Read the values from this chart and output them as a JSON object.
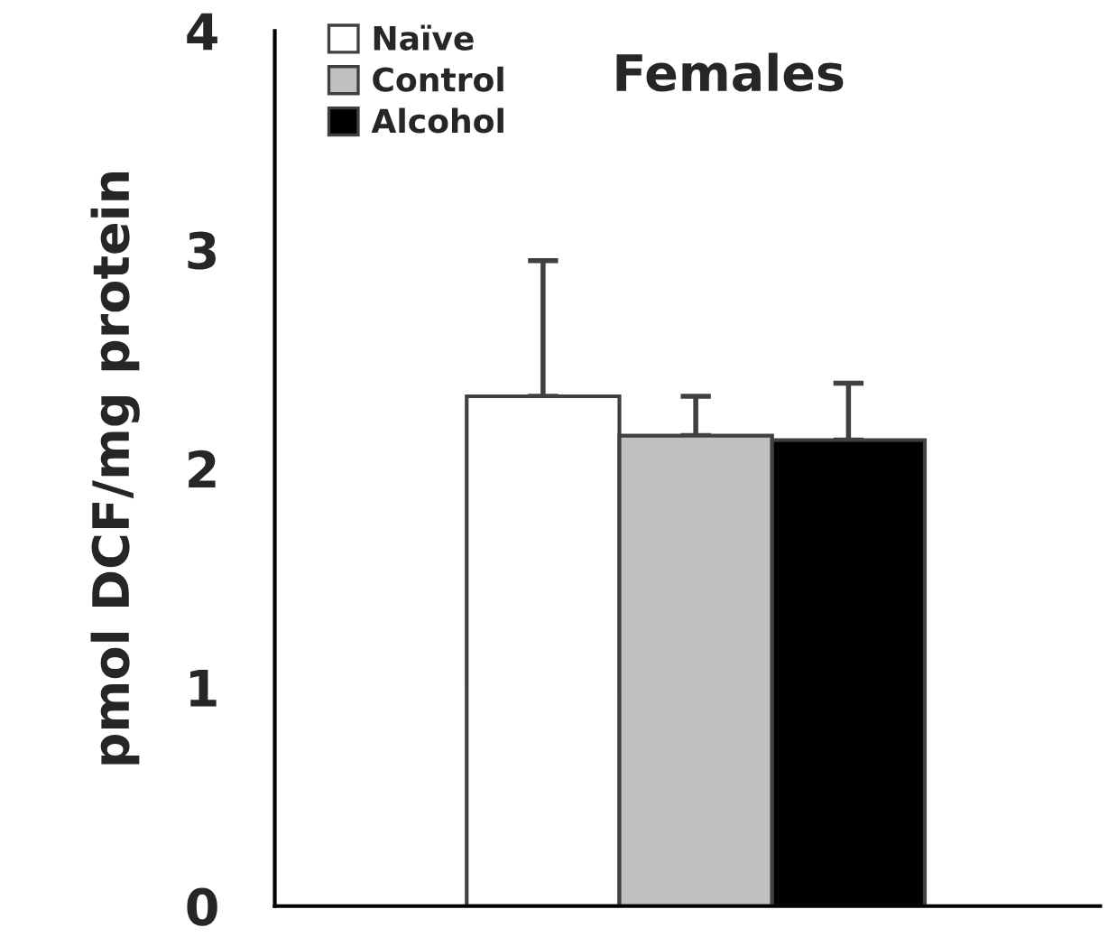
{
  "chart_data": {
    "type": "bar",
    "title": "Females",
    "ylabel": "pmol DCF/mg protein",
    "categories": [
      null
    ],
    "series": [
      {
        "name": "Naïve",
        "color": "#ffffff",
        "values": [
          2.33
        ],
        "errors": [
          [
            2.33,
            2.95
          ]
        ]
      },
      {
        "name": "Control",
        "color": "#c0c0c0",
        "values": [
          2.15
        ],
        "errors": [
          [
            2.15,
            2.33
          ]
        ]
      },
      {
        "name": "Alcohol",
        "color": "#000000",
        "values": [
          2.13
        ],
        "errors": [
          [
            2.13,
            2.39
          ]
        ]
      }
    ],
    "ylim": [
      0,
      4
    ],
    "yticks": [
      0,
      1,
      2,
      3,
      4
    ],
    "grid": false,
    "legend": "top left"
  }
}
